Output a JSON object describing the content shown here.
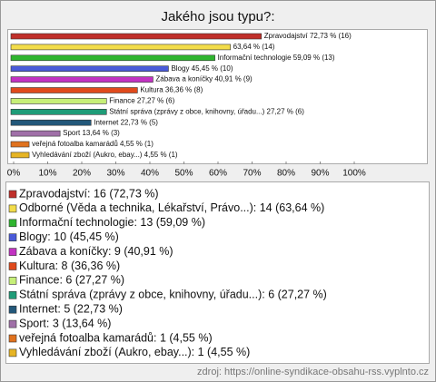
{
  "chart_data": {
    "type": "hbar",
    "title": "Jakého jsou typu?:",
    "categories": [
      "Zpravodajství",
      "Odborné",
      "Informační technologie",
      "Blogy",
      "Zábava a koníčky",
      "Kultura",
      "Finance",
      "Státní správa",
      "Internet",
      "Sport",
      "veřejná fotoalba kamarádů",
      "Vyhledávání zboží"
    ],
    "values": [
      72.73,
      63.64,
      59.09,
      45.45,
      40.91,
      36.36,
      27.27,
      27.27,
      22.73,
      13.64,
      4.55,
      4.55
    ],
    "value_labels": [
      "Zpravodajství 72,73 % (16)",
      "63,64 % (14)",
      "Informační technologie 59,09 % (13)",
      "Blogy 45,45 % (10)",
      "Zábava a koníčky 40,91 % (9)",
      "Kultura 36,36 % (8)",
      "Finance 27,27 % (6)",
      "Státní správa (zprávy z obce, knihovny, úřadu...) 27,27 % (6)",
      "Internet 22,73 % (5)",
      "Sport 13,64 % (3)",
      "veřejná fotoalba kamarádů 4,55 % (1)",
      "Vyhledávání zboží (Aukro, ebay...) 4,55 % (1)"
    ],
    "colors": [
      "#c0302a",
      "#f2dc4a",
      "#2fb52f",
      "#4a5ad8",
      "#c232c2",
      "#e04a1c",
      "#c6ef78",
      "#1f9c78",
      "#23587a",
      "#a070a8",
      "#e0721e",
      "#e6b424"
    ],
    "xlim": [
      0,
      100
    ],
    "xticks": [
      {
        "value": 0,
        "label": "0%"
      },
      {
        "value": 10,
        "label": "10%"
      },
      {
        "value": 20,
        "label": "20%"
      },
      {
        "value": 30,
        "label": "30%"
      },
      {
        "value": 40,
        "label": "40%"
      },
      {
        "value": 50,
        "label": "50%"
      },
      {
        "value": 60,
        "label": "60%"
      },
      {
        "value": 70,
        "label": "70%"
      },
      {
        "value": 80,
        "label": "80%"
      },
      {
        "value": 90,
        "label": "90%"
      },
      {
        "value": 100,
        "label": "100%"
      }
    ],
    "legend": [
      "Zpravodajství: 16 (72,73 %)",
      "Odborné (Věda a technika, Lékařství, Právo...): 14 (63,64 %)",
      "Informační technologie: 13 (59,09 %)",
      "Blogy: 10 (45,45 %)",
      "Zábava a koníčky: 9 (40,91 %)",
      "Kultura: 8 (36,36 %)",
      "Finance: 6 (27,27 %)",
      "Státní správa (zprávy z obce, knihovny, úřadu...): 6 (27,27 %)",
      "Internet: 5 (22,73 %)",
      "Sport: 3 (13,64 %)",
      "veřejná fotoalba kamarádů: 1 (4,55 %)",
      "Vyhledávání zboží (Aukro, ebay...): 1 (4,55 %)"
    ],
    "source": "zdroj: https://online-syndikace-obsahu-rss.vyplnto.cz"
  }
}
